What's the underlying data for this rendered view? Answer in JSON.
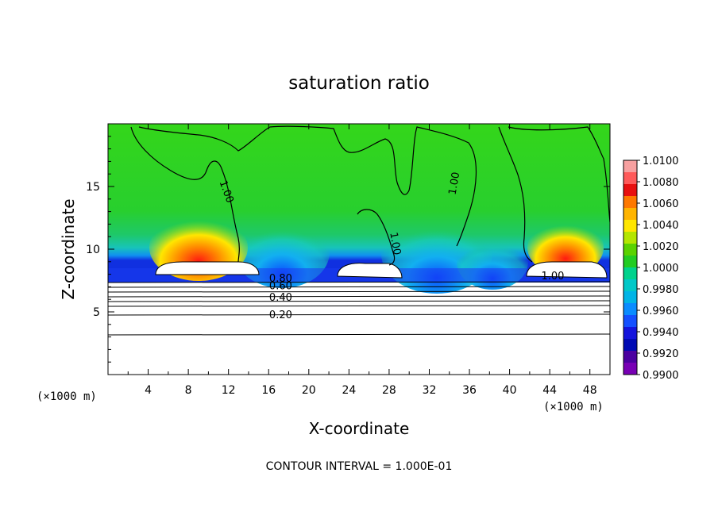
{
  "chart_data": {
    "type": "heatmap",
    "title": "saturation ratio",
    "xlabel": "X-coordinate",
    "ylabel": "Z-coordinate",
    "x_unit": "(×1000 m)",
    "x_unit_right": "(×1000 m)",
    "footer": "CONTOUR INTERVAL = 1.000E-01",
    "xlim": [
      0,
      50
    ],
    "ylim": [
      0,
      20
    ],
    "x_ticks": [
      4,
      8,
      12,
      16,
      20,
      24,
      28,
      32,
      36,
      40,
      44,
      48
    ],
    "x_tick_labels": [
      "4",
      "8",
      "12",
      "16",
      "20",
      "24",
      "28",
      "32",
      "36",
      "40",
      "44",
      "48"
    ],
    "y_ticks": [
      5,
      10,
      15
    ],
    "y_tick_labels": [
      "5",
      "10",
      "15"
    ],
    "colorbar": {
      "min": 0.99,
      "max": 1.01,
      "labels": [
        "1.0100",
        "1.0080",
        "1.0060",
        "1.0040",
        "1.0020",
        "1.0000",
        "0.9980",
        "0.9960",
        "0.9940",
        "0.9920",
        "0.9900"
      ],
      "colors": [
        "#f7a0a0",
        "#ff5a5a",
        "#e81010",
        "#ff7800",
        "#ffb400",
        "#ffe600",
        "#b4e600",
        "#5ad200",
        "#22cc22",
        "#00d28c",
        "#00c8c8",
        "#00b4e6",
        "#0a8cff",
        "#1450ff",
        "#1414dc",
        "#000ab4",
        "#4b00a0",
        "#7800b4"
      ]
    },
    "contour_labels": [
      {
        "text": "1.00",
        "x": 11.5,
        "z": 14.5,
        "angle": 70
      },
      {
        "text": "1.00",
        "x": 34.8,
        "z": 15.2,
        "angle": -80
      },
      {
        "text": "1.00",
        "x": 28.3,
        "z": 10.4,
        "angle": 80
      },
      {
        "text": "1.00",
        "x": 44.3,
        "z": 7.6,
        "angle": 0
      },
      {
        "text": "0.80",
        "x": 17.2,
        "z": 7.4,
        "angle": 0
      },
      {
        "text": "0.60",
        "x": 17.2,
        "z": 6.8,
        "angle": 0
      },
      {
        "text": "0.40",
        "x": 17.2,
        "z": 5.9,
        "angle": 0
      },
      {
        "text": "0.20",
        "x": 17.2,
        "z": 4.5,
        "angle": 0
      }
    ]
  }
}
